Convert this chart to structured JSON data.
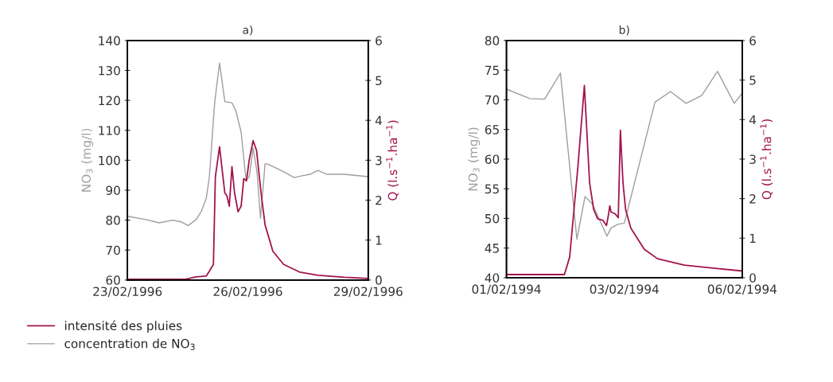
{
  "chart_data": [
    {
      "type": "line",
      "title": "a)",
      "ylabel": "NO$_{3}$ (mg/l)",
      "y2label": "Q (l.s$^{−1}$.ha$^{−1}$)",
      "xlim": [
        "1996-02-23T00:00",
        "1996-02-29T00:00"
      ],
      "xticks": [
        {
          "value": "1996-02-23T00:00",
          "label": "23/02/1996"
        },
        {
          "value": "1996-02-26T00:00",
          "label": "26/02/1996"
        },
        {
          "value": "1996-02-29T00:00",
          "label": "29/02/1996"
        }
      ],
      "ylim": [
        60,
        140
      ],
      "yticks": [
        60,
        70,
        80,
        90,
        100,
        110,
        120,
        130,
        140
      ],
      "y2lim": [
        0,
        6
      ],
      "y2ticks": [
        0,
        1,
        2,
        3,
        4,
        5,
        6
      ],
      "grid": false,
      "legend": "bottom left",
      "series": [
        {
          "name": "intensité des pluies",
          "color": "#a3144e",
          "axis": "y2",
          "x": [
            "1996-02-23T00:00",
            "1996-02-24T10:50",
            "1996-02-24T17:05",
            "1996-02-24T23:10",
            "1996-02-25T01:00",
            "1996-02-25T03:25",
            "1996-02-25T04:35",
            "1996-02-25T07:05",
            "1996-02-25T10:15",
            "1996-02-25T11:30",
            "1996-02-25T12:55",
            "1996-02-25T14:30",
            "1996-02-25T16:05",
            "1996-02-25T18:10",
            "1996-02-25T20:00",
            "1996-02-25T21:35",
            "1996-02-25T23:10",
            "1996-02-26T00:50",
            "1996-02-26T03:10",
            "1996-02-26T05:15",
            "1996-02-26T07:55",
            "1996-02-26T10:20",
            "1996-02-26T15:00",
            "1996-02-26T21:25",
            "1996-02-27T06:55",
            "1996-02-27T17:55",
            "1996-02-28T09:45",
            "1996-02-29T00:00"
          ],
          "values": [
            0.02,
            0.02,
            0.08,
            0.1,
            0.22,
            0.39,
            2.58,
            3.34,
            2.18,
            2.11,
            1.85,
            2.84,
            2.18,
            1.71,
            1.85,
            2.54,
            2.48,
            3.01,
            3.49,
            3.24,
            2.18,
            1.38,
            0.72,
            0.39,
            0.2,
            0.12,
            0.07,
            0.04
          ]
        },
        {
          "name": "concentration de NO$_{3}$",
          "color": "#9e9e9e",
          "x": [
            "1996-02-23T00:00",
            "1996-02-23T11:05",
            "1996-02-23T19:00",
            "1996-02-24T02:55",
            "1996-02-24T07:40",
            "1996-02-24T12:20",
            "1996-02-24T17:05",
            "1996-02-24T20:15",
            "1996-02-24T23:10",
            "1996-02-25T01:00",
            "1996-02-25T04:10",
            "1996-02-25T07:05",
            "1996-02-25T10:15",
            "1996-02-25T14:30",
            "1996-02-25T16:50",
            "1996-02-25T20:00",
            "1996-02-25T22:25",
            "1996-02-25T23:10",
            "1996-02-26T00:50",
            "1996-02-26T03:10",
            "1996-02-26T05:30",
            "1996-02-26T07:35",
            "1996-02-26T10:20",
            "1996-02-26T11:30",
            "1996-02-26T16:40",
            "1996-02-26T23:00",
            "1996-02-27T03:40",
            "1996-02-27T08:30",
            "1996-02-27T13:10",
            "1996-02-27T17:55",
            "1996-02-27T23:25",
            "1996-02-28T09:45",
            "1996-02-29T00:00"
          ],
          "values": [
            81.3,
            80.2,
            79.1,
            80,
            79.5,
            78.2,
            80.2,
            83,
            87.3,
            94.4,
            119.2,
            132.5,
            119.6,
            119.2,
            116.5,
            109.4,
            96.1,
            93.5,
            94.4,
            104.1,
            96.1,
            80.6,
            98.8,
            98.8,
            97.5,
            95.7,
            94.2,
            94.8,
            95.3,
            96.6,
            95.3,
            95.3,
            94.5
          ]
        }
      ]
    },
    {
      "type": "line",
      "title": "b)",
      "ylabel": "NO$_{3}$ (mg/l)",
      "y2label": "Q (l.s$^{−1}$.ha$^{−1}$)",
      "xlim": [
        "1994-02-01T00:00",
        "1994-02-06T00:00"
      ],
      "xticks": [
        {
          "value": "1994-02-01T00:00",
          "label": "01/02/1994"
        },
        {
          "value": "1994-02-03T12:00",
          "label": "03/02/1994"
        },
        {
          "value": "1994-02-06T00:00",
          "label": "06/02/1994"
        }
      ],
      "ylim": [
        40,
        80
      ],
      "yticks": [
        40,
        45,
        50,
        55,
        60,
        65,
        70,
        75,
        80
      ],
      "y2lim": [
        0,
        6
      ],
      "y2ticks": [
        0,
        1,
        2,
        3,
        4,
        5,
        6
      ],
      "grid": false,
      "series": [
        {
          "color": "#a3144e",
          "axis": "y2",
          "x": [
            "1994-02-01T00:00",
            "1994-02-02T05:30",
            "1994-02-02T08:10",
            "1994-02-02T12:20",
            "1994-02-02T15:40",
            "1994-02-02T18:20",
            "1994-02-02T20:25",
            "1994-02-02T22:25",
            "1994-02-03T01:10",
            "1994-02-03T02:55",
            "1994-02-03T03:55",
            "1994-02-03T04:35",
            "1994-02-03T05:15",
            "1994-02-03T07:15",
            "1994-02-03T08:55",
            "1994-02-03T10:00",
            "1994-02-03T11:20",
            "1994-02-03T12:40",
            "1994-02-03T15:20",
            "1994-02-03T22:10",
            "1994-02-04T04:55",
            "1994-02-04T18:30",
            "1994-02-05T08:05",
            "1994-02-06T00:00"
          ],
          "values": [
            0.08,
            0.08,
            0.52,
            2.79,
            4.86,
            2.39,
            1.72,
            1.49,
            1.45,
            1.32,
            1.59,
            1.82,
            1.66,
            1.62,
            1.52,
            3.73,
            2.39,
            1.72,
            1.25,
            0.72,
            0.48,
            0.32,
            0.25,
            0.17
          ]
        },
        {
          "color": "#9e9e9e",
          "x": [
            "1994-02-01T00:00",
            "1994-02-01T11:55",
            "1994-02-01T19:25",
            "1994-02-02T03:30",
            "1994-02-02T11:50",
            "1994-02-02T16:00",
            "1994-02-02T19:45",
            "1994-02-03T03:10",
            "1994-02-03T05:15",
            "1994-02-03T08:40",
            "1994-02-03T12:00",
            "1994-02-04T03:35",
            "1994-02-04T11:30",
            "1994-02-04T19:25",
            "1994-02-05T03:20",
            "1994-02-05T11:25",
            "1994-02-05T19:55",
            "1994-02-06T00:00"
          ],
          "values": [
            71.8,
            70.2,
            70.1,
            74.5,
            46.5,
            53.7,
            52.4,
            47.0,
            48.4,
            49.0,
            49.2,
            69.6,
            71.4,
            69.4,
            70.7,
            74.8,
            69.4,
            71.1
          ]
        }
      ]
    }
  ]
}
